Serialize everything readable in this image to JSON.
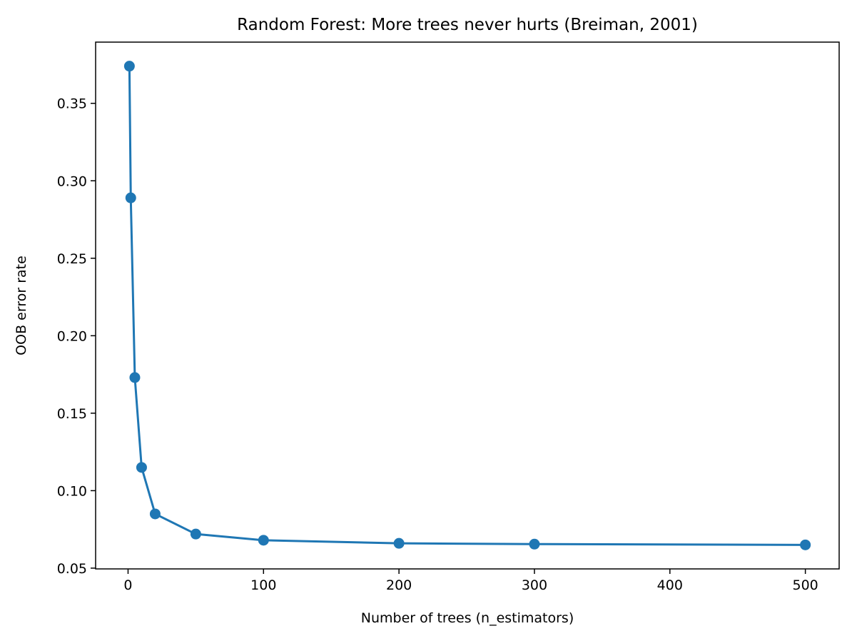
{
  "chart_data": {
    "type": "line",
    "title": "Random Forest: More trees never hurts (Breiman, 2001)",
    "xlabel": "Number of trees (n_estimators)",
    "ylabel": "OOB error rate",
    "x": [
      1,
      2,
      5,
      10,
      20,
      50,
      100,
      200,
      300,
      500
    ],
    "series": [
      {
        "color": "#1f77b4",
        "values": [
          0.374,
          0.289,
          0.173,
          0.115,
          0.085,
          0.072,
          0.068,
          0.066,
          0.0655,
          0.065
        ]
      }
    ],
    "xlim": [
      -23.95,
      524.95
    ],
    "ylim": [
      0.0495,
      0.3895
    ],
    "xticks": [
      0,
      100,
      200,
      300,
      400,
      500
    ],
    "yticks": [
      0.05,
      {
        "value": 0.1,
        "label": "0.10"
      },
      0.15,
      {
        "value": 0.2,
        "label": "0.20"
      },
      0.25,
      {
        "value": 0.3,
        "label": "0.30"
      },
      0.35
    ],
    "markers": true,
    "grid": false
  }
}
